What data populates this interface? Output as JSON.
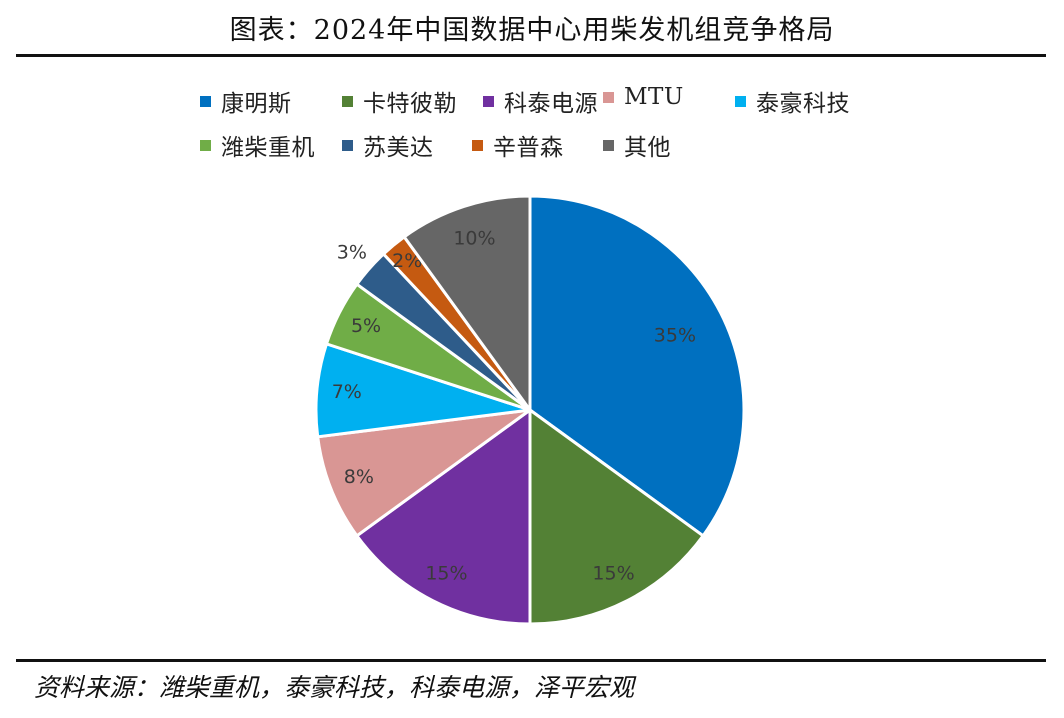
{
  "header": {
    "title": "图表：2024年中国数据中心用柴发机组竞争格局"
  },
  "footer": {
    "source": "资料来源：潍柴重机，泰豪科技，科泰电源，泽平宏观"
  },
  "chart_data": {
    "type": "pie",
    "title": "图表：2024年中国数据中心用柴发机组竞争格局",
    "legend_position": "top",
    "slices": [
      {
        "name": "康明斯",
        "value": 35,
        "label": "35%",
        "color": "#0070C0"
      },
      {
        "name": "卡特彼勒",
        "value": 15,
        "label": "15%",
        "color": "#538135"
      },
      {
        "name": "科泰电源",
        "value": 15,
        "label": "15%",
        "color": "#7030A0"
      },
      {
        "name": "MTU",
        "value": 8,
        "label": "8%",
        "color": "#D99694"
      },
      {
        "name": "泰豪科技",
        "value": 7,
        "label": "7%",
        "color": "#00B0F0"
      },
      {
        "name": "潍柴重机",
        "value": 5,
        "label": "5%",
        "color": "#70AD47"
      },
      {
        "name": "苏美达",
        "value": 3,
        "label": "3%",
        "color": "#2E5C8A"
      },
      {
        "name": "辛普森",
        "value": 2,
        "label": "2%",
        "color": "#C55A11"
      },
      {
        "name": "其他",
        "value": 10,
        "label": "10%",
        "color": "#666666"
      }
    ]
  }
}
